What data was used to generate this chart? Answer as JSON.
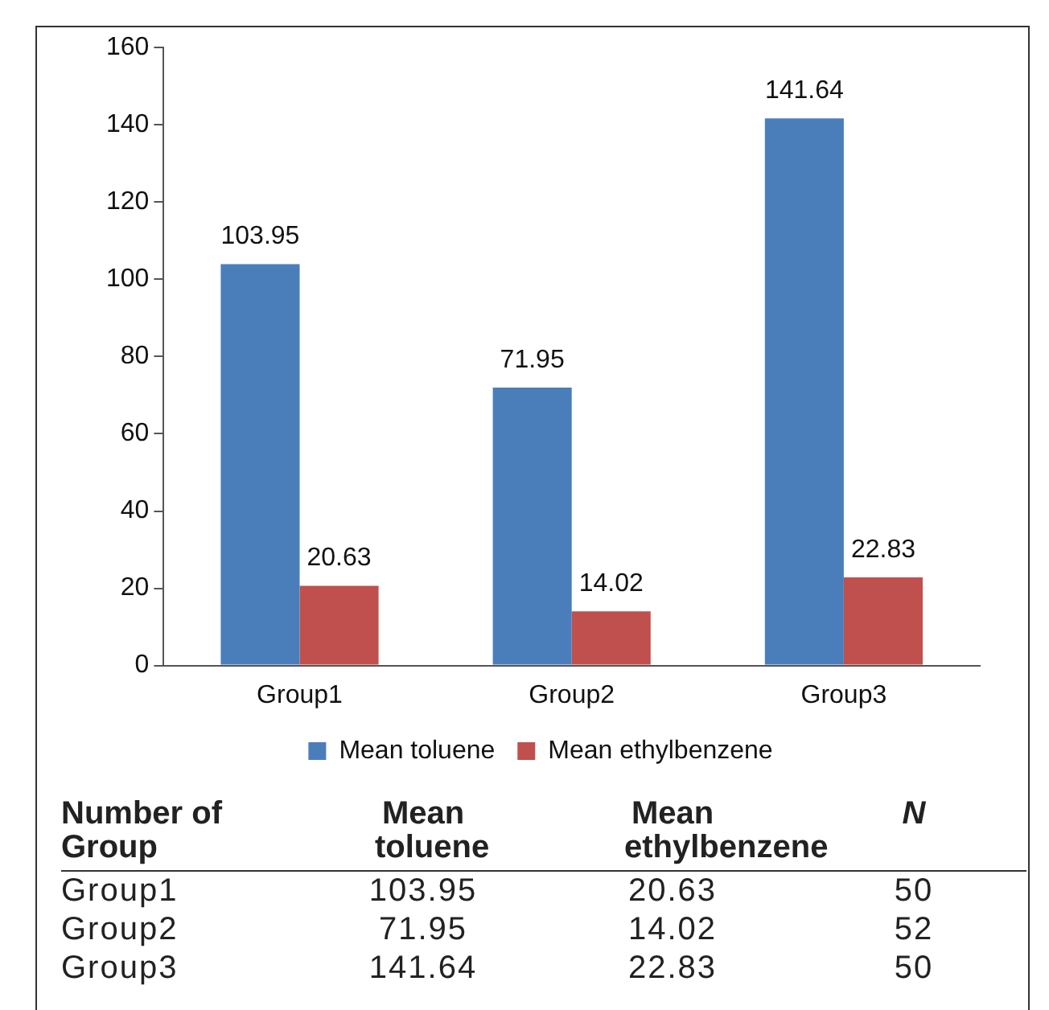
{
  "chart_data": [
    {
      "type": "bar",
      "categories": [
        "Group1",
        "Group2",
        "Group3"
      ],
      "series": [
        {
          "name": "Mean toluene",
          "color": "#4a7ebb",
          "values": [
            103.95,
            71.95,
            141.64
          ]
        },
        {
          "name": "Mean ethylbenzene",
          "color": "#c0504d",
          "values": [
            20.63,
            14.02,
            22.83
          ]
        }
      ],
      "ylim": [
        0,
        160
      ],
      "yticks": [
        0,
        20,
        40,
        60,
        80,
        100,
        120,
        140,
        160
      ],
      "grid": false,
      "legend": "bottom",
      "data_labels": true
    },
    {
      "type": "other",
      "annotations": [
        "Number of Group",
        "Mean toluene",
        "Mean ethylbenzene",
        "N",
        "Group1",
        "103.95",
        "20.63",
        "50",
        "Group2",
        "71.95",
        "14.02",
        "52",
        "Group3",
        "141.64",
        "22.83",
        "50"
      ]
    }
  ]
}
